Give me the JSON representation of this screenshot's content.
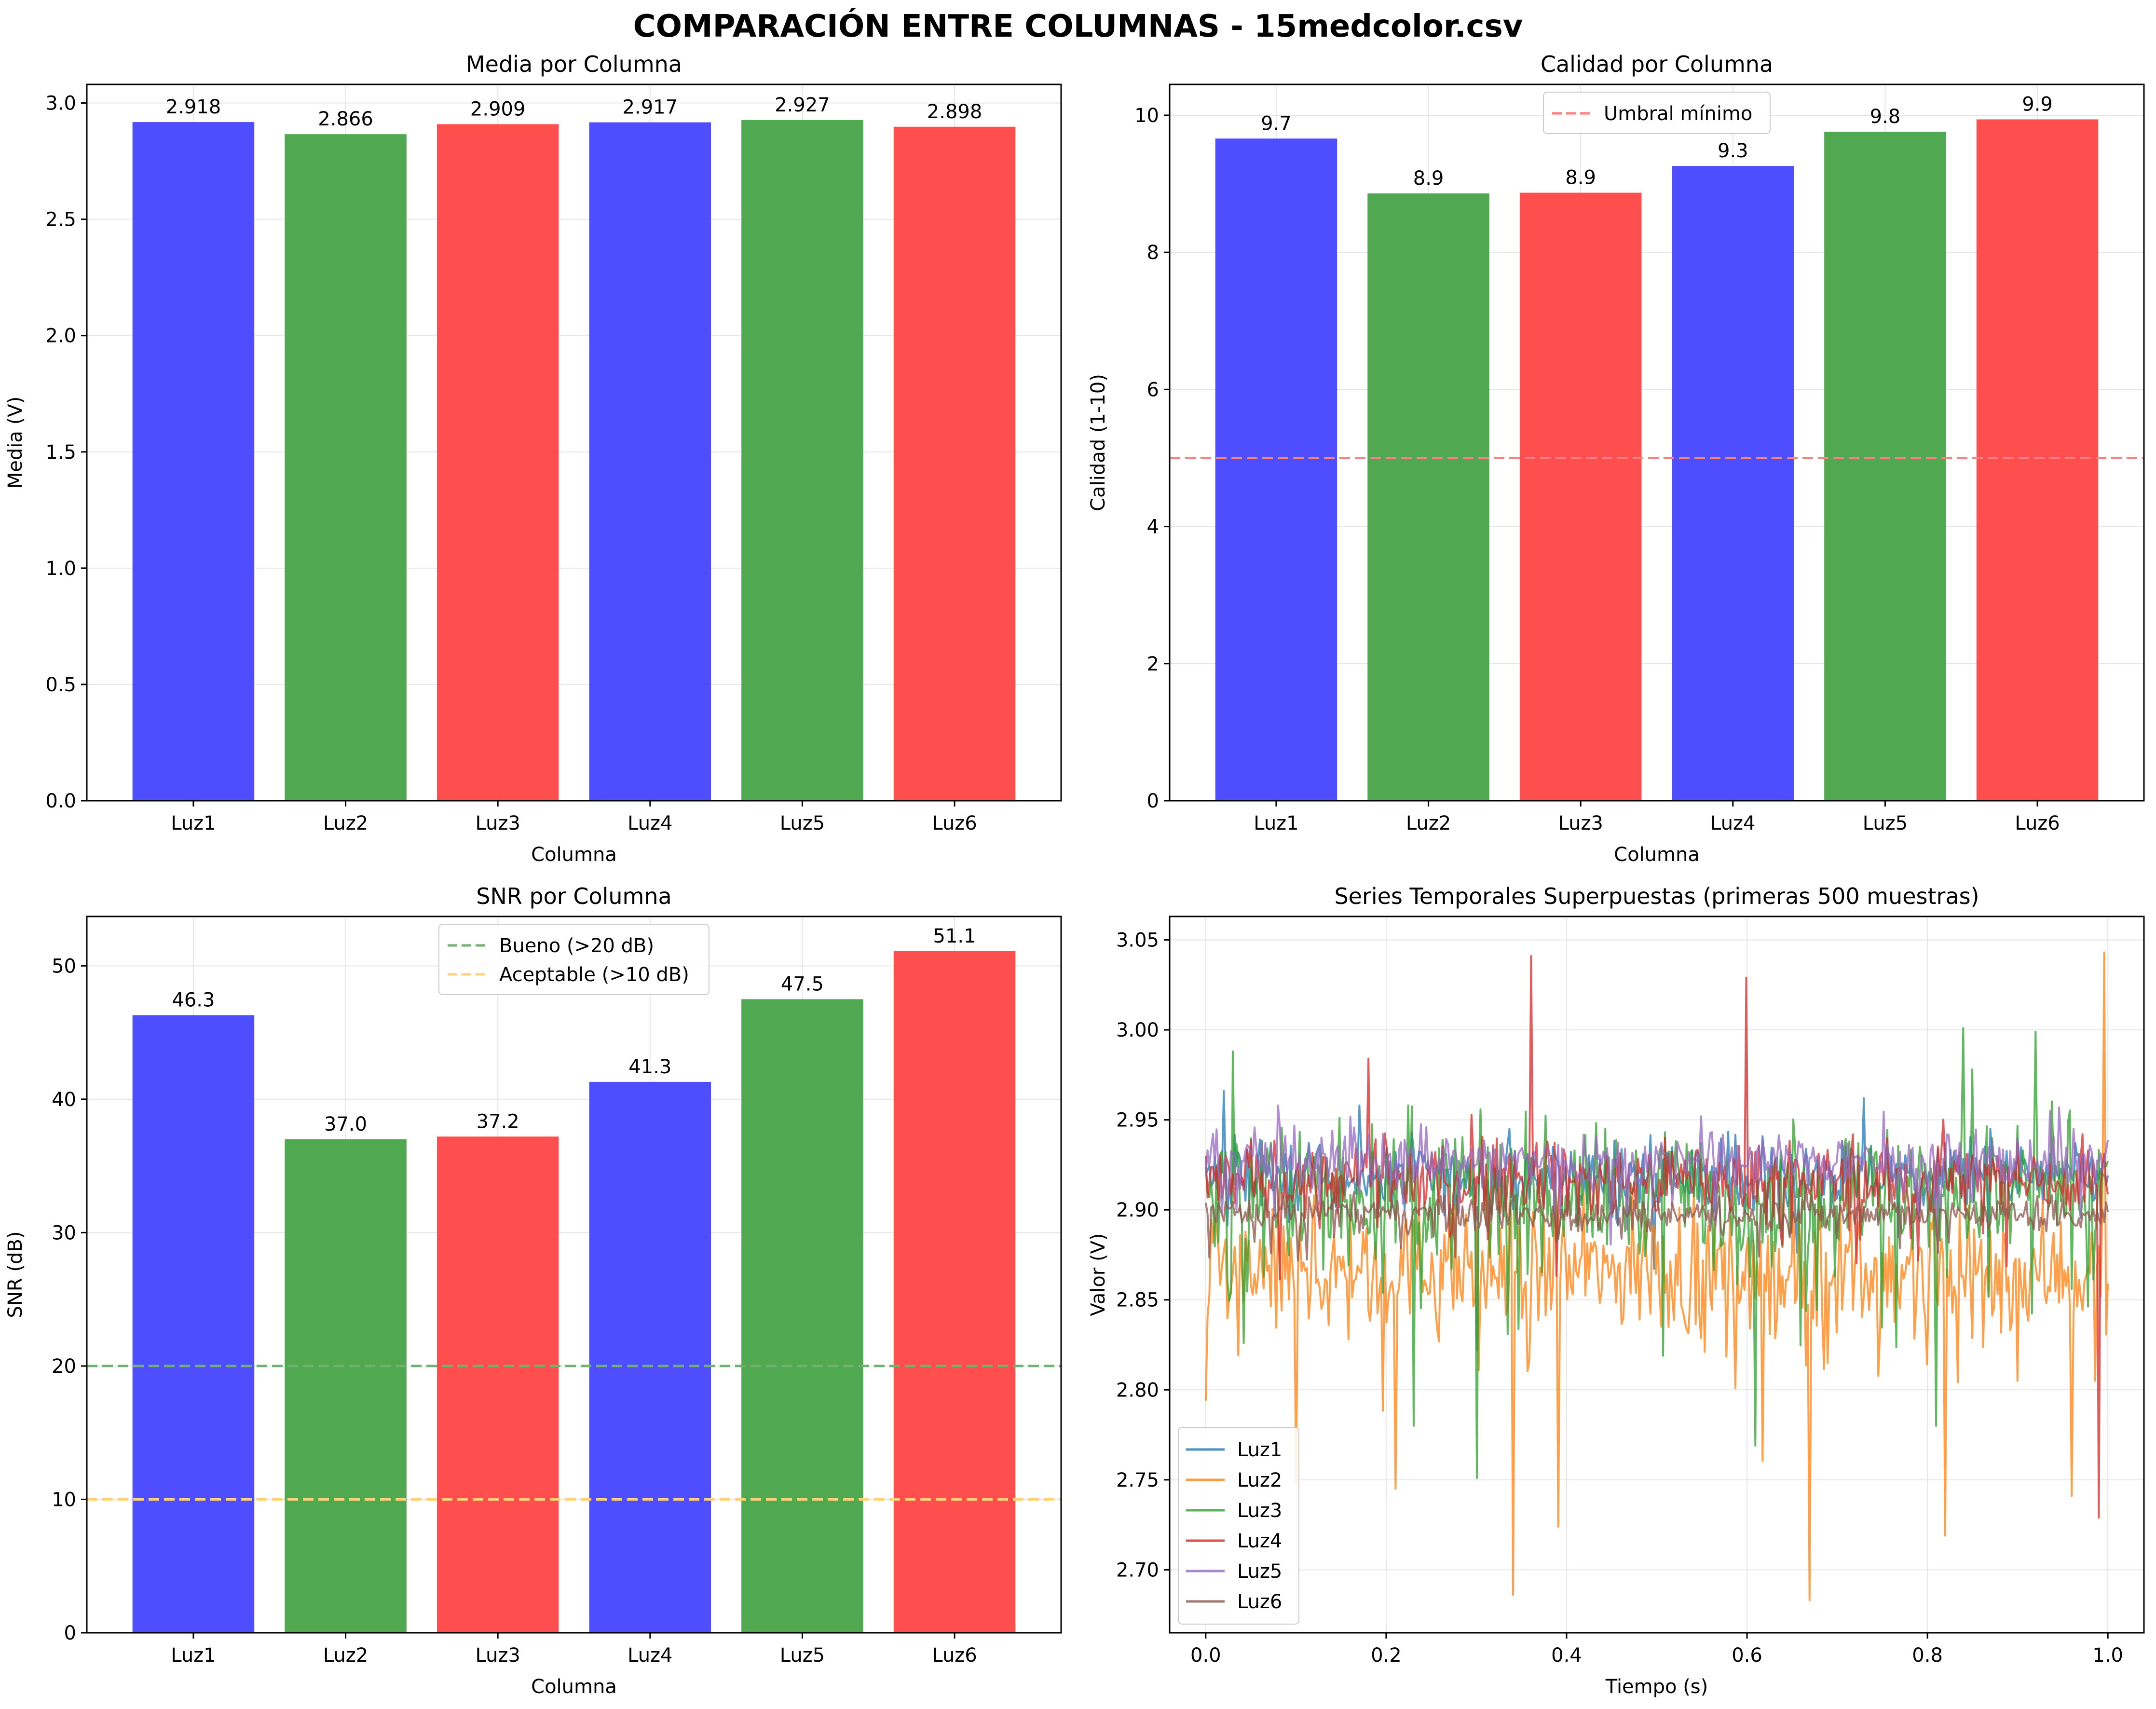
{
  "figure": {
    "suptitle": "COMPARACIÓN ENTRE COLUMNAS - 15medcolor.csv"
  },
  "colors": {
    "blue": "#4a4aff",
    "green": "#4ca64c",
    "red": "#ff4a4a",
    "grid": "#e6e6e6",
    "threshold_red": "#ff8080",
    "threshold_green": "#70b070",
    "threshold_orange": "#ffd27a"
  },
  "chart_data": [
    {
      "id": "media",
      "type": "bar",
      "title": "Media por Columna",
      "xlabel": "Columna",
      "ylabel": "Media (V)",
      "categories": [
        "Luz1",
        "Luz2",
        "Luz3",
        "Luz4",
        "Luz5",
        "Luz6"
      ],
      "values": [
        2.918,
        2.866,
        2.909,
        2.917,
        2.927,
        2.898
      ],
      "value_labels": [
        "2.918",
        "2.866",
        "2.909",
        "2.917",
        "2.927",
        "2.898"
      ],
      "bar_colors": [
        "blue",
        "green",
        "red",
        "blue",
        "green",
        "red"
      ],
      "ylim": [
        0,
        3.08
      ],
      "yticks": [
        0.0,
        0.5,
        1.0,
        1.5,
        2.0,
        2.5,
        3.0
      ],
      "ytick_labels": [
        "0.0",
        "0.5",
        "1.0",
        "1.5",
        "2.0",
        "2.5",
        "3.0"
      ],
      "grid": true,
      "hlines": [],
      "legend": []
    },
    {
      "id": "calidad",
      "type": "bar",
      "title": "Calidad por Columna",
      "xlabel": "Columna",
      "ylabel": "Calidad (1-10)",
      "categories": [
        "Luz1",
        "Luz2",
        "Luz3",
        "Luz4",
        "Luz5",
        "Luz6"
      ],
      "values": [
        9.66,
        8.86,
        8.87,
        9.26,
        9.76,
        9.94
      ],
      "value_labels": [
        "9.7",
        "8.9",
        "8.9",
        "9.3",
        "9.8",
        "9.9"
      ],
      "bar_colors": [
        "blue",
        "green",
        "red",
        "blue",
        "green",
        "red"
      ],
      "ylim": [
        0,
        10.45
      ],
      "yticks": [
        0,
        2,
        4,
        6,
        8,
        10
      ],
      "ytick_labels": [
        "0",
        "2",
        "4",
        "6",
        "8",
        "10"
      ],
      "grid": true,
      "hlines": [
        {
          "y": 5,
          "color": "threshold_red",
          "label": "Umbral mínimo"
        }
      ],
      "legend": [
        "Umbral mínimo"
      ],
      "legend_position": "top-center"
    },
    {
      "id": "snr",
      "type": "bar",
      "title": "SNR por Columna",
      "xlabel": "Columna",
      "ylabel": "SNR (dB)",
      "categories": [
        "Luz1",
        "Luz2",
        "Luz3",
        "Luz4",
        "Luz5",
        "Luz6"
      ],
      "values": [
        46.3,
        37.0,
        37.2,
        41.3,
        47.5,
        51.1
      ],
      "value_labels": [
        "46.3",
        "37.0",
        "37.2",
        "41.3",
        "47.5",
        "51.1"
      ],
      "bar_colors": [
        "blue",
        "green",
        "red",
        "blue",
        "green",
        "red"
      ],
      "ylim": [
        0,
        53.7
      ],
      "yticks": [
        0,
        10,
        20,
        30,
        40,
        50
      ],
      "ytick_labels": [
        "0",
        "10",
        "20",
        "30",
        "40",
        "50"
      ],
      "grid": true,
      "hlines": [
        {
          "y": 20,
          "color": "threshold_green",
          "label": "Bueno (>20 dB)"
        },
        {
          "y": 10,
          "color": "threshold_orange",
          "label": "Aceptable (>10 dB)"
        }
      ],
      "legend": [
        "Bueno (>20 dB)",
        "Aceptable (>10 dB)"
      ],
      "legend_position": "top-center"
    },
    {
      "id": "series",
      "type": "line",
      "title": "Series Temporales Superpuestas (primeras 500 muestras)",
      "xlabel": "Tiempo (s)",
      "ylabel": "Valor (V)",
      "xlim": [
        -0.04,
        1.04
      ],
      "ylim": [
        2.665,
        3.063
      ],
      "xticks": [
        0.0,
        0.2,
        0.4,
        0.6,
        0.8,
        1.0
      ],
      "xtick_labels": [
        "0.0",
        "0.2",
        "0.4",
        "0.6",
        "0.8",
        "1.0"
      ],
      "yticks": [
        2.7,
        2.75,
        2.8,
        2.85,
        2.9,
        2.95,
        3.0,
        3.05
      ],
      "ytick_labels": [
        "2.70",
        "2.75",
        "2.80",
        "2.85",
        "2.90",
        "2.95",
        "3.00",
        "3.05"
      ],
      "grid": true,
      "legend_position": "lower-left",
      "samples": 500,
      "x_range": [
        0.0,
        1.0
      ],
      "series": [
        {
          "name": "Luz1",
          "color": "#1f77b4",
          "mean": 2.918,
          "noise": 0.011,
          "spikes": [
            [
              0.02,
              2.966
            ],
            [
              0.17,
              2.958
            ],
            [
              0.3,
              2.822
            ],
            [
              0.73,
              2.962
            ],
            [
              0.87,
              2.945
            ]
          ]
        },
        {
          "name": "Luz2",
          "color": "#ff7f0e",
          "mean": 2.866,
          "noise": 0.022,
          "spikes": [
            [
              0.0,
              2.794
            ],
            [
              0.1,
              2.748
            ],
            [
              0.21,
              2.745
            ],
            [
              0.34,
              2.686
            ],
            [
              0.39,
              2.724
            ],
            [
              0.67,
              2.683
            ],
            [
              0.82,
              2.719
            ],
            [
              0.96,
              2.741
            ],
            [
              0.995,
              3.043
            ]
          ]
        },
        {
          "name": "Luz3",
          "color": "#2ca02c",
          "mean": 2.909,
          "noise": 0.024,
          "spikes": [
            [
              0.03,
              2.988
            ],
            [
              0.23,
              2.78
            ],
            [
              0.3,
              2.751
            ],
            [
              0.61,
              2.769
            ],
            [
              0.81,
              2.78
            ],
            [
              0.84,
              3.001
            ],
            [
              0.92,
              2.999
            ]
          ]
        },
        {
          "name": "Luz4",
          "color": "#d62728",
          "mean": 2.917,
          "noise": 0.012,
          "spikes": [
            [
              0.18,
              2.984
            ],
            [
              0.36,
              3.041
            ],
            [
              0.6,
              3.029
            ],
            [
              0.99,
              2.729
            ]
          ]
        },
        {
          "name": "Luz5",
          "color": "#9467bd",
          "mean": 2.927,
          "noise": 0.01,
          "spikes": [
            [
              0.08,
              2.958
            ],
            [
              0.55,
              2.952
            ]
          ]
        },
        {
          "name": "Luz6",
          "color": "#8c564b",
          "mean": 2.898,
          "noise": 0.006,
          "spikes": [
            [
              0.46,
              2.884
            ],
            [
              0.76,
              2.914
            ]
          ]
        }
      ]
    }
  ]
}
